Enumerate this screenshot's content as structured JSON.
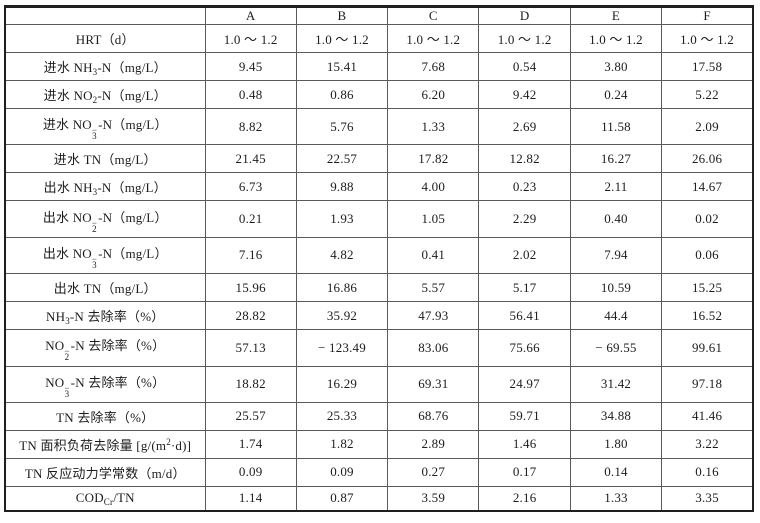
{
  "table": {
    "columns": [
      "",
      "A",
      "B",
      "C",
      "D",
      "E",
      "F"
    ],
    "rows": [
      {
        "label_parts": [
          {
            "t": "HRT（d）"
          }
        ],
        "values": [
          "1.0 ～ 1.2",
          "1.0 ～ 1.2",
          "1.0 ～ 1.2",
          "1.0 ～ 1.2",
          "1.0 ～ 1.2",
          "1.0 ～ 1.2"
        ]
      },
      {
        "label_parts": [
          {
            "t": "进水 NH"
          },
          {
            "t": "3",
            "v": "sub"
          },
          {
            "t": "-N（mg/L）"
          }
        ],
        "values": [
          "9.45",
          "15.41",
          "7.68",
          "0.54",
          "3.80",
          "17.58"
        ]
      },
      {
        "label_parts": [
          {
            "t": "进水 NO"
          },
          {
            "t": "2",
            "v": "sub"
          },
          {
            "t": "-N（mg/L）"
          }
        ],
        "values": [
          "0.48",
          "0.86",
          "6.20",
          "9.42",
          "0.24",
          "5.22"
        ]
      },
      {
        "label_parts": [
          {
            "t": "进水 NO"
          },
          {
            "v": "stack",
            "sub": "3",
            "sup": "−"
          },
          {
            "t": "-N（mg/L）"
          }
        ],
        "values": [
          "8.82",
          "5.76",
          "1.33",
          "2.69",
          "11.58",
          "2.09"
        ]
      },
      {
        "label_parts": [
          {
            "t": "进水 TN（mg/L）"
          }
        ],
        "values": [
          "21.45",
          "22.57",
          "17.82",
          "12.82",
          "16.27",
          "26.06"
        ]
      },
      {
        "label_parts": [
          {
            "t": "出水 NH"
          },
          {
            "t": "3",
            "v": "sub"
          },
          {
            "t": "-N（mg/L）"
          }
        ],
        "values": [
          "6.73",
          "9.88",
          "4.00",
          "0.23",
          "2.11",
          "14.67"
        ]
      },
      {
        "label_parts": [
          {
            "t": "出水 NO"
          },
          {
            "v": "stack",
            "sub": "2",
            "sup": "−"
          },
          {
            "t": "-N（mg/L）"
          }
        ],
        "values": [
          "0.21",
          "1.93",
          "1.05",
          "2.29",
          "0.40",
          "0.02"
        ]
      },
      {
        "label_parts": [
          {
            "t": "出水 NO"
          },
          {
            "v": "stack",
            "sub": "3",
            "sup": "−"
          },
          {
            "t": "-N（mg/L）"
          }
        ],
        "values": [
          "7.16",
          "4.82",
          "0.41",
          "2.02",
          "7.94",
          "0.06"
        ]
      },
      {
        "label_parts": [
          {
            "t": "出水 TN（mg/L）"
          }
        ],
        "values": [
          "15.96",
          "16.86",
          "5.57",
          "5.17",
          "10.59",
          "15.25"
        ]
      },
      {
        "label_parts": [
          {
            "t": "NH"
          },
          {
            "t": "3",
            "v": "sub"
          },
          {
            "t": "-N 去除率（%）"
          }
        ],
        "values": [
          "28.82",
          "35.92",
          "47.93",
          "56.41",
          "44.4",
          "16.52"
        ]
      },
      {
        "label_parts": [
          {
            "t": "NO"
          },
          {
            "v": "stack",
            "sub": "2",
            "sup": "−"
          },
          {
            "t": "-N 去除率（%）"
          }
        ],
        "values": [
          "57.13",
          "− 123.49",
          "83.06",
          "75.66",
          "− 69.55",
          "99.61"
        ]
      },
      {
        "label_parts": [
          {
            "t": "NO"
          },
          {
            "v": "stack",
            "sub": "3",
            "sup": "−"
          },
          {
            "t": "-N 去除率（%）"
          }
        ],
        "values": [
          "18.82",
          "16.29",
          "69.31",
          "24.97",
          "31.42",
          "97.18"
        ]
      },
      {
        "label_parts": [
          {
            "t": "TN 去除率（%）"
          }
        ],
        "values": [
          "25.57",
          "25.33",
          "68.76",
          "59.71",
          "34.88",
          "41.46"
        ]
      },
      {
        "label_parts": [
          {
            "t": "TN 面积负荷去除量 [g/(m"
          },
          {
            "t": "2",
            "v": "sup"
          },
          {
            "t": "·d)]"
          }
        ],
        "values": [
          "1.74",
          "1.82",
          "2.89",
          "1.46",
          "1.80",
          "3.22"
        ]
      },
      {
        "label_parts": [
          {
            "t": "TN 反应动力学常数（m/d）"
          }
        ],
        "values": [
          "0.09",
          "0.09",
          "0.27",
          "0.17",
          "0.14",
          "0.16"
        ]
      },
      {
        "label_parts": [
          {
            "t": "COD"
          },
          {
            "t": "Cr",
            "v": "sub"
          },
          {
            "t": "/TN"
          }
        ],
        "values": [
          "1.14",
          "0.87",
          "3.59",
          "2.16",
          "1.33",
          "3.35"
        ]
      }
    ]
  }
}
